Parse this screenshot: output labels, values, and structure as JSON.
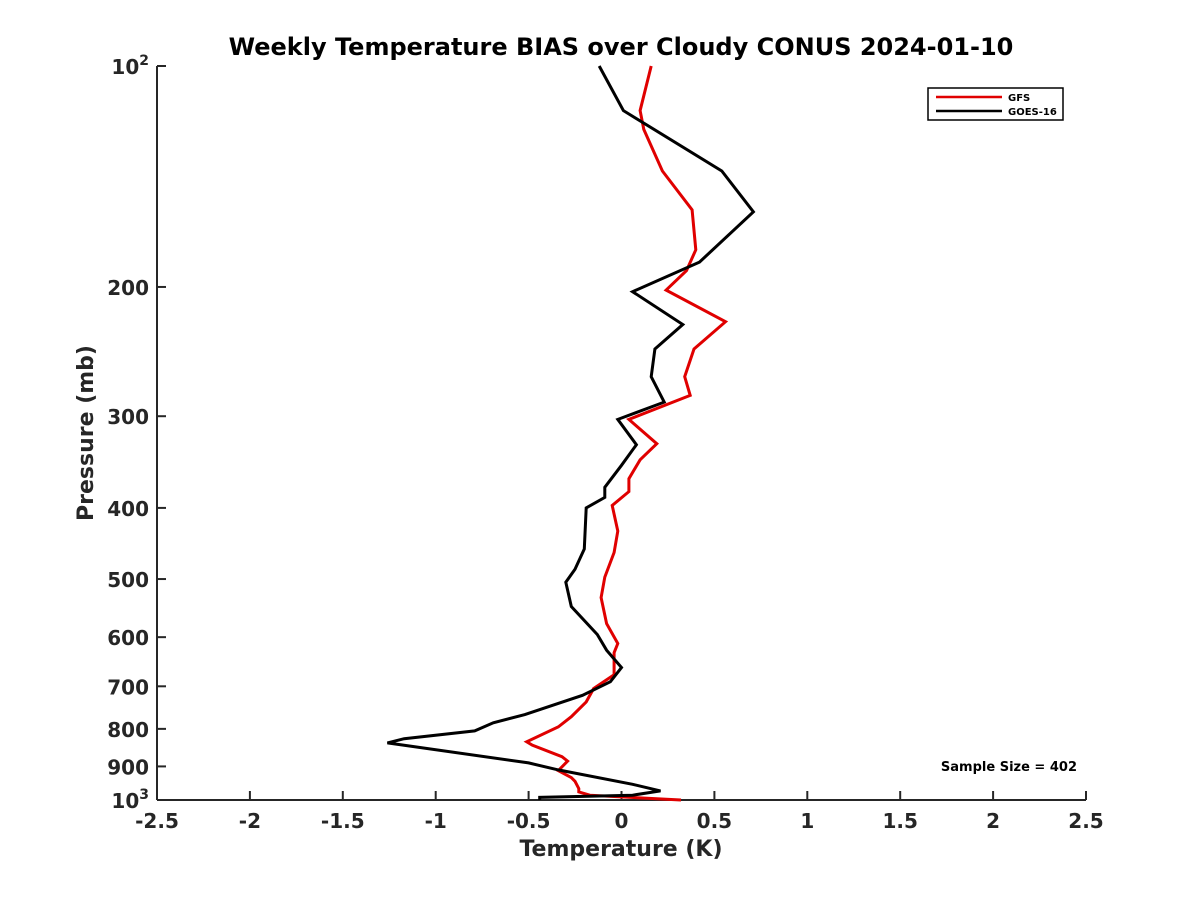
{
  "chart_data": {
    "type": "line",
    "title": "Weekly Temperature BIAS over Cloudy CONUS 2024-01-10",
    "xlabel": "Temperature (K)",
    "ylabel": "Pressure (mb)",
    "xlim": [
      -2.5,
      2.5
    ],
    "ylim": [
      100,
      1000
    ],
    "y_scale": "log",
    "y_reversed": true,
    "x_ticks": [
      "-2.5",
      "-2",
      "-1.5",
      "-1",
      "-0.5",
      "0",
      "0.5",
      "1",
      "1.5",
      "2",
      "2.5"
    ],
    "x_tick_values": [
      -2.5,
      -2,
      -1.5,
      -1,
      -0.5,
      0,
      0.5,
      1,
      1.5,
      2,
      2.5
    ],
    "y_ticks": [
      {
        "value": 100,
        "base": "10",
        "exp": "2"
      },
      {
        "value": 200,
        "label": "200"
      },
      {
        "value": 300,
        "label": "300"
      },
      {
        "value": 400,
        "label": "400"
      },
      {
        "value": 500,
        "label": "500"
      },
      {
        "value": 600,
        "label": "600"
      },
      {
        "value": 700,
        "label": "700"
      },
      {
        "value": 800,
        "label": "800"
      },
      {
        "value": 900,
        "label": "900"
      },
      {
        "value": 1000,
        "base": "10",
        "exp": "3"
      }
    ],
    "grid": false,
    "legend_position": "top-right",
    "annotation": "Sample Size = 402",
    "series": [
      {
        "name": "GFS",
        "color": "#e00000",
        "points": [
          [
            0.16,
            100
          ],
          [
            0.1,
            115
          ],
          [
            0.12,
            122
          ],
          [
            0.22,
            139
          ],
          [
            0.38,
            157
          ],
          [
            0.4,
            178
          ],
          [
            0.35,
            190
          ],
          [
            0.24,
            202
          ],
          [
            0.56,
            223
          ],
          [
            0.39,
            243
          ],
          [
            0.34,
            265
          ],
          [
            0.37,
            281
          ],
          [
            0.04,
            303
          ],
          [
            0.19,
            327
          ],
          [
            0.1,
            344
          ],
          [
            0.04,
            365
          ],
          [
            0.04,
            380
          ],
          [
            -0.05,
            397
          ],
          [
            -0.02,
            430
          ],
          [
            -0.04,
            460
          ],
          [
            -0.09,
            497
          ],
          [
            -0.11,
            530
          ],
          [
            -0.08,
            575
          ],
          [
            -0.02,
            612
          ],
          [
            -0.04,
            630
          ],
          [
            -0.04,
            675
          ],
          [
            -0.15,
            705
          ],
          [
            -0.19,
            735
          ],
          [
            -0.27,
            770
          ],
          [
            -0.34,
            795
          ],
          [
            -0.51,
            833
          ],
          [
            -0.48,
            842
          ],
          [
            -0.32,
            873
          ],
          [
            -0.29,
            885
          ],
          [
            -0.34,
            912
          ],
          [
            -0.27,
            932
          ],
          [
            -0.25,
            943
          ],
          [
            -0.23,
            965
          ],
          [
            -0.23,
            975
          ],
          [
            -0.17,
            985
          ],
          [
            0.32,
            1000
          ]
        ]
      },
      {
        "name": "GOES-16",
        "color": "#000000",
        "points": [
          [
            -0.12,
            100
          ],
          [
            0.01,
            115
          ],
          [
            0.54,
            139
          ],
          [
            0.71,
            158
          ],
          [
            0.42,
            185
          ],
          [
            0.06,
            203
          ],
          [
            0.33,
            225
          ],
          [
            0.18,
            243
          ],
          [
            0.16,
            265
          ],
          [
            0.23,
            287
          ],
          [
            -0.02,
            303
          ],
          [
            0.08,
            328
          ],
          [
            0.0,
            350
          ],
          [
            -0.09,
            375
          ],
          [
            -0.09,
            387
          ],
          [
            -0.19,
            400
          ],
          [
            -0.2,
            455
          ],
          [
            -0.25,
            485
          ],
          [
            -0.3,
            505
          ],
          [
            -0.27,
            545
          ],
          [
            -0.13,
            595
          ],
          [
            -0.08,
            625
          ],
          [
            0.0,
            660
          ],
          [
            -0.06,
            690
          ],
          [
            -0.21,
            720
          ],
          [
            -0.52,
            765
          ],
          [
            -0.69,
            785
          ],
          [
            -0.79,
            805
          ],
          [
            -1.17,
            825
          ],
          [
            -1.26,
            836
          ],
          [
            -0.5,
            890
          ],
          [
            -0.34,
            910
          ],
          [
            0.06,
            952
          ],
          [
            0.21,
            972
          ],
          [
            0.06,
            985
          ],
          [
            -0.44,
            992
          ],
          [
            -0.44,
            1000
          ]
        ]
      }
    ]
  }
}
